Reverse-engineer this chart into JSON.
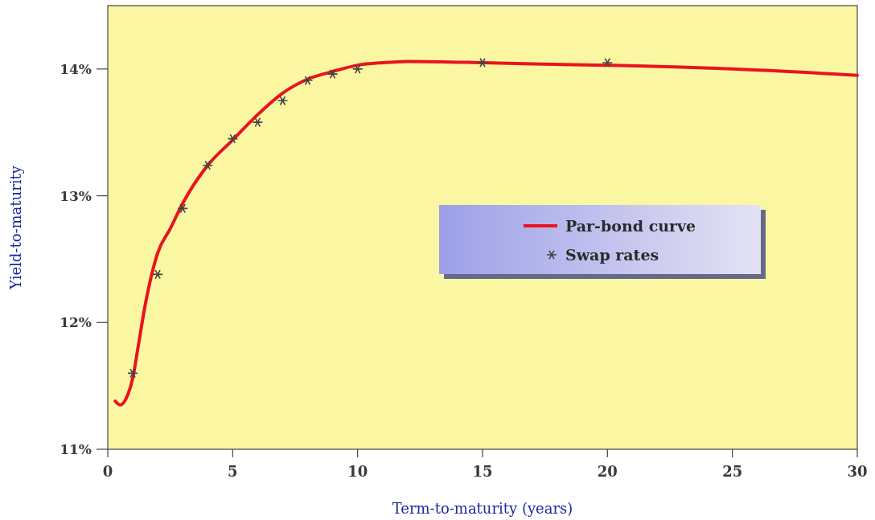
{
  "chart_data": {
    "type": "line",
    "xlabel": "Term-to-maturity (years)",
    "ylabel": "Yield-to-maturity",
    "xlim": [
      0,
      30
    ],
    "xticks": [
      0,
      5,
      10,
      15,
      20,
      25,
      30
    ],
    "ylim": [
      11,
      14.5
    ],
    "yticks": [
      {
        "value": 11,
        "label": "11%"
      },
      {
        "value": 12,
        "label": "12%"
      },
      {
        "value": 13,
        "label": "13%"
      },
      {
        "value": 14,
        "label": "14%"
      }
    ],
    "grid": false,
    "legend": "right",
    "series": [
      {
        "name": "Par-bond curve",
        "color": "#e8141e",
        "marker": "none",
        "line_style": "solid",
        "x": [
          0.3,
          0.5,
          0.8,
          1,
          1.2,
          1.5,
          2,
          2.5,
          3,
          4,
          5,
          6,
          7,
          8,
          9,
          10,
          11,
          12,
          15,
          17,
          20,
          25,
          30
        ],
        "values": [
          11.38,
          11.35,
          11.43,
          11.56,
          11.79,
          12.14,
          12.55,
          12.74,
          12.94,
          13.24,
          13.44,
          13.64,
          13.81,
          13.92,
          13.98,
          14.03,
          14.05,
          14.06,
          14.05,
          14.04,
          14.03,
          14.0,
          13.95
        ]
      },
      {
        "name": "Swap rates",
        "type": "scatter",
        "color": "#444444",
        "marker": "cross",
        "x": [
          1,
          2,
          3,
          4,
          5,
          6,
          7,
          8,
          9,
          10,
          15,
          20
        ],
        "values": [
          11.6,
          12.38,
          12.9,
          13.24,
          13.45,
          13.58,
          13.75,
          13.91,
          13.96,
          14.0,
          14.05,
          14.05
        ]
      }
    ]
  }
}
